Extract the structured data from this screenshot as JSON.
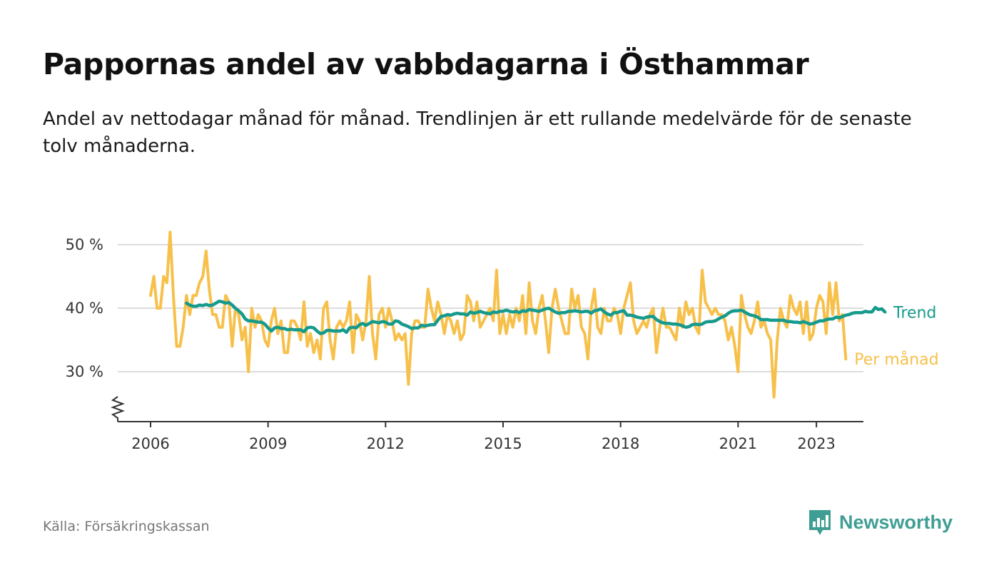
{
  "title": "Pappornas andel av vabbdagarna i Östhammar",
  "subtitle": "Andel av nettodagar månad för månad. Trendlinjen är ett rullande medelvärde för de senaste tolv månaderna.",
  "source": "Källa: Försäkringskassan",
  "brand": {
    "name": "Newsworthy",
    "icon": "bar-chart-speech-icon"
  },
  "colors": {
    "monthly": "#f7c04a",
    "trend": "#159a8c",
    "grid": "#dddddd",
    "axis": "#333333"
  },
  "chart_data": {
    "type": "line",
    "title": "Pappornas andel av vabbdagarna i Östhammar",
    "ylabel": "",
    "xlabel": "",
    "ylim": [
      22,
      52
    ],
    "y_ticks": [
      30,
      40,
      50
    ],
    "y_tick_labels": [
      "30 %",
      "40 %",
      "50 %"
    ],
    "x_ticks": [
      2006,
      2009,
      2012,
      2015,
      2018,
      2021,
      2023
    ],
    "x_tick_labels": [
      "2006",
      "2009",
      "2012",
      "2015",
      "2018",
      "2021",
      "2023"
    ],
    "xlim": [
      2005,
      2024.2
    ],
    "axis_break": true,
    "legend": "direct labels at line ends, right",
    "series": [
      {
        "name": "Per månad",
        "label": "Per månad",
        "color": "#f7c04a",
        "start": 2006.0,
        "step_months": 1,
        "values": [
          42,
          45,
          40,
          40,
          45,
          44,
          52,
          42,
          34,
          34,
          37,
          42,
          39,
          42,
          42,
          44,
          45,
          49,
          43,
          39,
          39,
          37,
          37,
          42,
          41,
          34,
          40,
          39,
          35,
          37,
          30,
          40,
          37,
          39,
          38,
          35,
          34,
          38,
          40,
          36,
          38,
          33,
          33,
          38,
          38,
          37,
          35,
          41,
          34,
          36,
          33,
          35,
          32,
          40,
          41,
          35,
          32,
          37,
          38,
          37,
          38,
          41,
          33,
          39,
          38,
          35,
          38,
          45,
          36,
          32,
          39,
          40,
          37,
          40,
          38,
          35,
          36,
          35,
          36,
          28,
          36,
          38,
          38,
          37,
          37,
          43,
          40,
          38,
          41,
          39,
          36,
          39,
          38,
          36,
          38,
          35,
          36,
          42,
          41,
          38,
          41,
          37,
          38,
          39,
          40,
          38,
          46,
          36,
          39,
          36,
          39,
          37,
          40,
          38,
          42,
          36,
          44,
          38,
          36,
          40,
          42,
          38,
          33,
          40,
          43,
          40,
          38,
          36,
          36,
          43,
          40,
          42,
          37,
          36,
          32,
          40,
          43,
          37,
          36,
          40,
          38,
          38,
          40,
          39,
          36,
          40,
          42,
          44,
          38,
          36,
          37,
          38,
          37,
          39,
          40,
          33,
          37,
          40,
          37,
          37,
          36,
          35,
          40,
          37,
          41,
          39,
          40,
          37,
          36,
          46,
          41,
          40,
          39,
          40,
          39,
          39,
          38,
          35,
          37,
          34,
          30,
          42,
          39,
          37,
          36,
          38,
          41,
          37,
          38,
          36,
          35,
          26,
          35,
          40,
          38,
          37,
          42,
          40,
          39,
          41,
          36,
          41,
          35,
          36,
          40,
          42,
          41,
          36,
          44,
          39,
          44,
          38,
          39,
          32
        ]
      },
      {
        "name": "Trend",
        "label": "Trend",
        "color": "#159a8c",
        "start": 2006.917,
        "step_months": 1,
        "values": [
          40.8,
          40.5,
          40.3,
          40.3,
          40.5,
          40.4,
          40.6,
          40.4,
          40.5,
          40.8,
          41.1,
          41,
          40.8,
          40.9,
          40.5,
          40,
          39.6,
          39.1,
          38.3,
          38,
          38,
          37.9,
          37.8,
          37.8,
          37.5,
          36.9,
          36.4,
          36.9,
          37,
          36.8,
          36.8,
          36.6,
          36.7,
          36.6,
          36.6,
          36.6,
          36.3,
          36.9,
          37,
          36.9,
          36.4,
          36,
          36.1,
          36.5,
          36.5,
          36.4,
          36.4,
          36.4,
          36.6,
          36.2,
          36.9,
          37,
          36.9,
          37.4,
          37.6,
          37.3,
          37.6,
          37.9,
          37.8,
          37.7,
          37.9,
          37.8,
          37.5,
          37.5,
          38,
          37.9,
          37.5,
          37.3,
          37.1,
          36.8,
          36.9,
          36.9,
          37.3,
          37.2,
          37.3,
          37.4,
          37.4,
          38.1,
          38.7,
          38.8,
          39,
          38.9,
          39.1,
          39.2,
          39.1,
          39.1,
          38.9,
          39.4,
          39.2,
          39.3,
          39.5,
          39.3,
          39.2,
          39.1,
          39.4,
          39.3,
          39.5,
          39.5,
          39.7,
          39.5,
          39.4,
          39.5,
          39.3,
          39.6,
          39.5,
          39.8,
          39.7,
          39.6,
          39.5,
          39.7,
          39.9,
          40,
          39.7,
          39.4,
          39.2,
          39.3,
          39.3,
          39.5,
          39.5,
          39.6,
          39.5,
          39.4,
          39.5,
          39.5,
          39.2,
          39.6,
          39.7,
          39.9,
          39.4,
          39.1,
          38.9,
          39.3,
          39.3,
          39.5,
          39.6,
          38.9,
          38.9,
          38.8,
          38.6,
          38.5,
          38.4,
          38.6,
          38.7,
          38.7,
          38.2,
          37.9,
          37.7,
          37.6,
          37.6,
          37.5,
          37.5,
          37.4,
          37.2,
          37,
          37.1,
          37.4,
          37.5,
          37.4,
          37.5,
          37.8,
          37.9,
          37.9,
          38,
          38.3,
          38.6,
          38.8,
          39.2,
          39.5,
          39.6,
          39.6,
          39.7,
          39.4,
          39.1,
          38.9,
          38.8,
          38.6,
          38.2,
          38.2,
          38.2,
          38.1,
          38.1,
          38.1,
          38.1,
          38.1,
          37.9,
          37.9,
          37.8,
          37.8,
          37.7,
          37.9,
          37.7,
          37.5,
          37.6,
          37.8,
          38,
          38,
          38.2,
          38.3,
          38.3,
          38.6,
          38.5,
          38.7,
          38.9,
          39,
          39.2,
          39.3,
          39.3,
          39.3,
          39.5,
          39.4,
          39.4,
          40.1,
          39.8,
          39.9,
          39.4
        ]
      }
    ]
  }
}
